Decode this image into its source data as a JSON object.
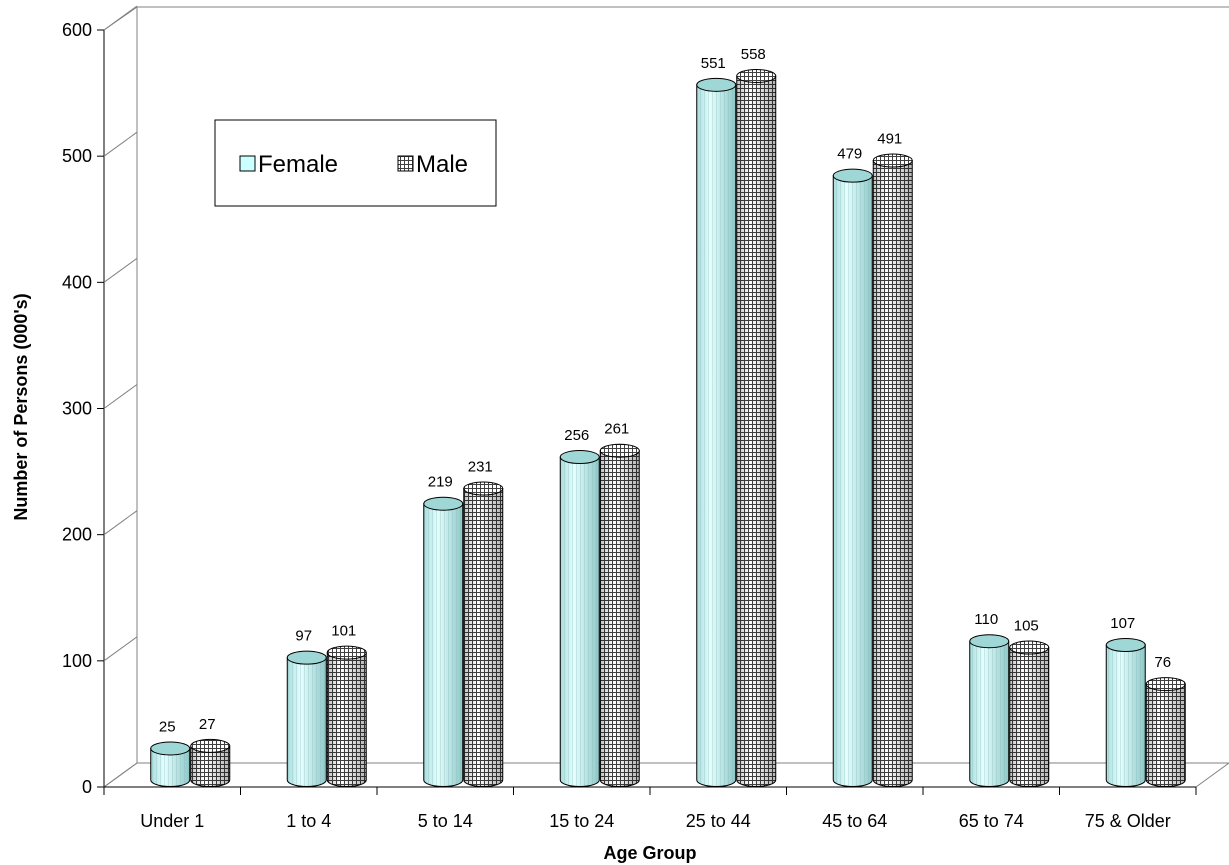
{
  "chart_data": {
    "type": "bar",
    "categories": [
      "Under 1",
      "1 to 4",
      "5 to 14",
      "15 to 24",
      "25 to 44",
      "45 to 64",
      "65 to 74",
      "75 & Older"
    ],
    "series": [
      {
        "name": "Female",
        "values": [
          25,
          97,
          219,
          256,
          551,
          479,
          110,
          107
        ]
      },
      {
        "name": "Male",
        "values": [
          27,
          101,
          231,
          261,
          558,
          491,
          105,
          76
        ]
      }
    ],
    "title": "",
    "xlabel": "Age Group",
    "ylabel": "Number of Persons (000's)",
    "ylim": [
      0,
      600
    ],
    "yticks": [
      0,
      100,
      200,
      300,
      400,
      500,
      600
    ],
    "grid": false,
    "legend": "top-left",
    "style": "3d-cylinder",
    "colors": {
      "female": "#ccffff",
      "male": "#c0c0c0",
      "wall_line": "#808080"
    }
  }
}
